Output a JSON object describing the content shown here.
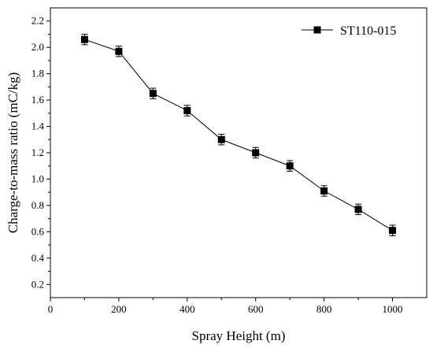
{
  "chart_data": {
    "type": "line",
    "xlabel": "Spray Height (m)",
    "ylabel": "Charge-to-mass ratio (mC/kg)",
    "xlim": [
      0,
      1100
    ],
    "ylim": [
      0.1,
      2.3
    ],
    "xticks": [
      "0",
      "200",
      "400",
      "600",
      "800",
      "1000"
    ],
    "yticks": [
      "0.2",
      "0.4",
      "0.6",
      "0.8",
      "1.0",
      "1.2",
      "1.4",
      "1.6",
      "1.8",
      "2.0",
      "2.2"
    ],
    "legend_position": "top-right",
    "grid": false,
    "marker": "square",
    "error_bars": true,
    "series": [
      {
        "name": "ST110-015",
        "color": "#000000",
        "x": [
          100,
          200,
          300,
          400,
          500,
          600,
          700,
          800,
          900,
          1000
        ],
        "y": [
          2.06,
          1.97,
          1.65,
          1.52,
          1.3,
          1.2,
          1.1,
          0.91,
          0.77,
          0.61
        ],
        "err": [
          0.04,
          0.04,
          0.04,
          0.04,
          0.04,
          0.04,
          0.04,
          0.04,
          0.04,
          0.04
        ]
      }
    ]
  }
}
